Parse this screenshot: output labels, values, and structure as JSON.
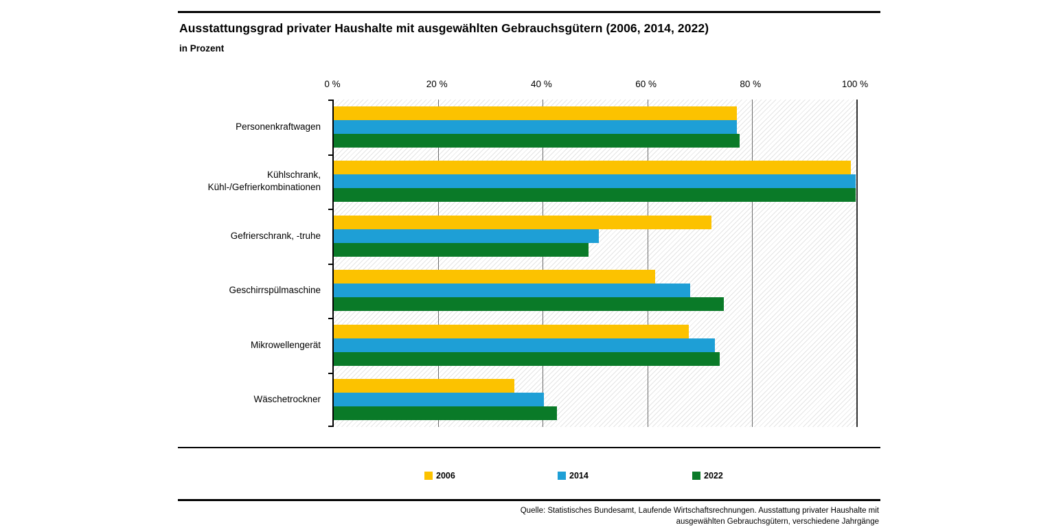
{
  "header": {
    "title": "Ausstattungsgrad privater Haushalte mit ausgewählten Gebrauchsgütern (2006, 2014, 2022)",
    "subtitle": "in Prozent"
  },
  "chart_data": {
    "type": "bar",
    "orientation": "horizontal",
    "title": "Ausstattungsgrad privater Haushalte mit ausgewählten Gebrauchsgütern (2006, 2014, 2022)",
    "unit_label": "in Prozent",
    "xlim": [
      0,
      100
    ],
    "x_ticks": [
      {
        "value": 0,
        "label": "0 %"
      },
      {
        "value": 20,
        "label": "20 %"
      },
      {
        "value": 40,
        "label": "40 %"
      },
      {
        "value": 60,
        "label": "60 %"
      },
      {
        "value": 80,
        "label": "80 %"
      },
      {
        "value": 100,
        "label": "100 %"
      }
    ],
    "gridline_values": [
      20,
      40,
      60,
      80
    ],
    "legend_position": "bottom",
    "plot_background": "diagonal-hatch",
    "categories": [
      "Personenkraftwagen",
      "Kühlschrank, Kühl-/Gefrierkombinationen",
      "Gefrierschrank, -truhe",
      "Geschirrspülmaschine",
      "Mikrowellengerät",
      "Wäschetrockner"
    ],
    "series": [
      {
        "name": "2006",
        "color": "#FCC200",
        "values": [
          77.1,
          98.9,
          72.3,
          61.5,
          68.0,
          34.5
        ]
      },
      {
        "name": "2014",
        "color": "#1E9FD6",
        "values": [
          77.2,
          99.9,
          50.7,
          68.2,
          72.9,
          40.2
        ]
      },
      {
        "name": "2022",
        "color": "#0A7A28",
        "values": [
          77.7,
          99.9,
          48.7,
          74.7,
          73.8,
          42.7
        ]
      }
    ]
  },
  "colors": {
    "gridline": "#6a6a6a",
    "axis": "#000000",
    "hatch": "#e4e4e4"
  },
  "footer": {
    "source_line1": "Quelle: Statistisches Bundesamt, Laufende Wirtschaftsrechnungen. Ausstattung privater Haushalte mit",
    "source_line2": "ausgewählten Gebrauchsgütern, verschiedene Jahrgänge"
  }
}
